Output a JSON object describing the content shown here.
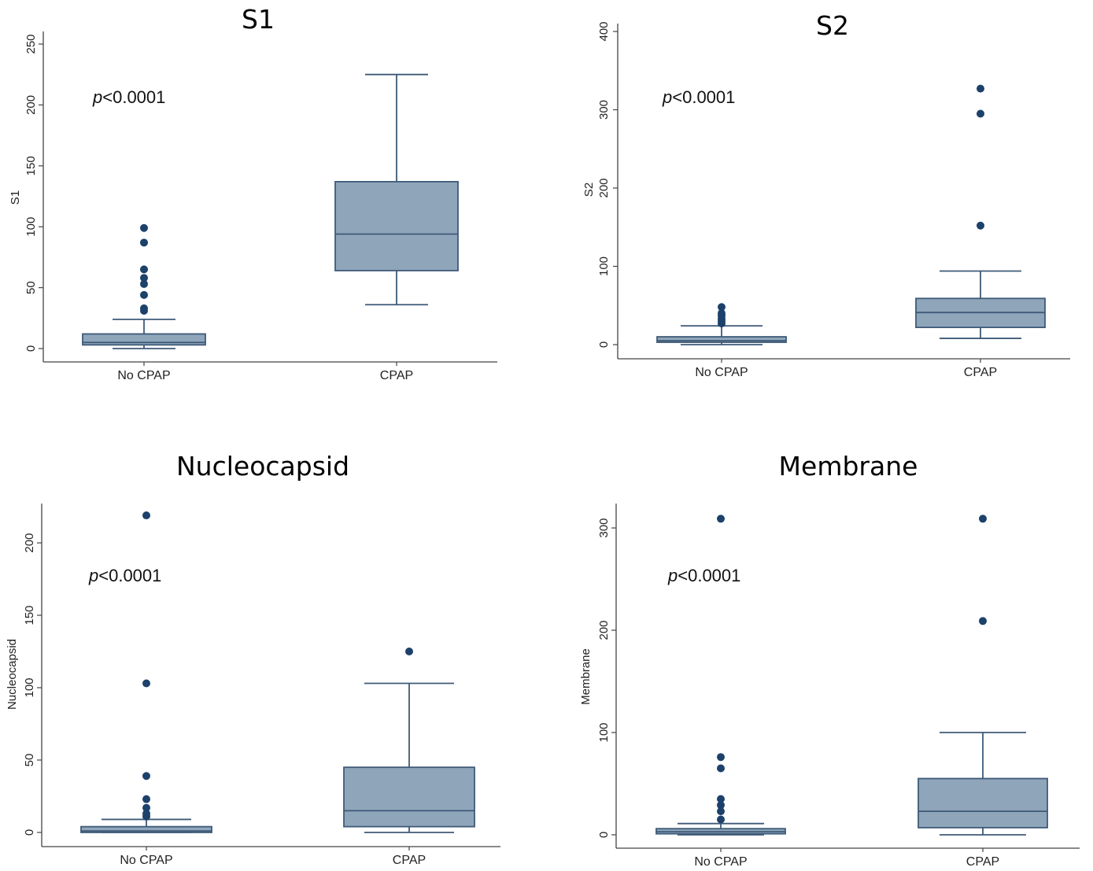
{
  "chart_data": [
    {
      "type": "box",
      "title": "S1",
      "ylabel": "S1",
      "categories": [
        "No CPAP",
        "CPAP"
      ],
      "ylim": [
        0,
        250
      ],
      "yticks": [
        0,
        50,
        100,
        150,
        200,
        250
      ],
      "annotation": {
        "italic": "p",
        "text": "<0.0001"
      },
      "boxes": [
        {
          "category": "No CPAP",
          "whisker_low": 0,
          "q1": 3,
          "median": 5,
          "q3": 12,
          "whisker_high": 24,
          "outliers": [
            31,
            33,
            44,
            53,
            58,
            65,
            87,
            99
          ]
        },
        {
          "category": "CPAP",
          "whisker_low": 36,
          "q1": 64,
          "median": 94,
          "q3": 137,
          "whisker_high": 225,
          "outliers": []
        }
      ]
    },
    {
      "type": "box",
      "title": "S2",
      "ylabel": "S2",
      "categories": [
        "No CPAP",
        "CPAP"
      ],
      "ylim": [
        0,
        400
      ],
      "yticks": [
        0,
        100,
        200,
        300,
        400
      ],
      "annotation": {
        "italic": "p",
        "text": "<0.0001"
      },
      "boxes": [
        {
          "category": "No CPAP",
          "whisker_low": 0,
          "q1": 3,
          "median": 5,
          "q3": 10,
          "whisker_high": 24,
          "outliers": [
            27,
            30,
            33,
            37,
            40,
            48
          ]
        },
        {
          "category": "CPAP",
          "whisker_low": 8,
          "q1": 22,
          "median": 41,
          "q3": 59,
          "whisker_high": 94,
          "outliers": [
            152,
            295,
            327
          ]
        }
      ]
    },
    {
      "type": "box",
      "title": "Nucleocapsid",
      "ylabel": "Nucleocapsid",
      "categories": [
        "No CPAP",
        "CPAP"
      ],
      "ylim": [
        0,
        220
      ],
      "yticks": [
        0,
        50,
        100,
        150,
        200
      ],
      "annotation": {
        "italic": "p",
        "text": "<0.0001"
      },
      "boxes": [
        {
          "category": "No CPAP",
          "whisker_low": 0,
          "q1": 0,
          "median": 1,
          "q3": 4,
          "whisker_high": 9,
          "outliers": [
            11,
            13,
            17,
            23,
            39,
            103,
            219
          ]
        },
        {
          "category": "CPAP",
          "whisker_low": 0,
          "q1": 4,
          "median": 15,
          "q3": 45,
          "whisker_high": 103,
          "outliers": [
            125
          ]
        }
      ]
    },
    {
      "type": "box",
      "title": "Membrane",
      "ylabel": "Membrane",
      "categories": [
        "No CPAP",
        "CPAP"
      ],
      "ylim": [
        0,
        310
      ],
      "yticks": [
        0,
        100,
        200,
        300
      ],
      "annotation": {
        "italic": "p",
        "text": "<0.0001"
      },
      "boxes": [
        {
          "category": "No CPAP",
          "whisker_low": 0,
          "q1": 1,
          "median": 3,
          "q3": 6,
          "whisker_high": 11,
          "outliers": [
            15,
            23,
            29,
            35,
            65,
            76,
            309
          ]
        },
        {
          "category": "CPAP",
          "whisker_low": 0,
          "q1": 7,
          "median": 23,
          "q3": 55,
          "whisker_high": 100,
          "outliers": [
            209,
            309
          ]
        }
      ]
    }
  ]
}
